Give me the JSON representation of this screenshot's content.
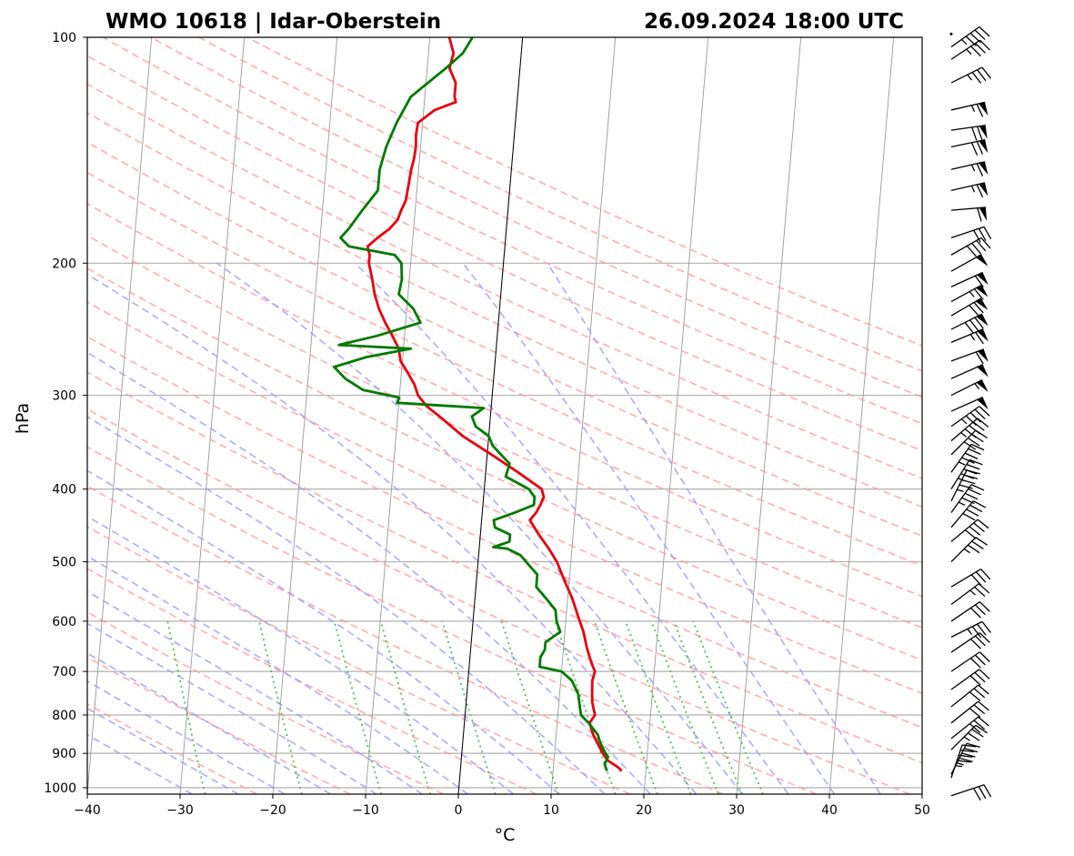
{
  "chart_data": {
    "type": "line",
    "subtype": "skew-T log-p sounding",
    "title_left": "WMO 10618 | Idar-Oberstein",
    "title_right": "26.09.2024 18:00 UTC",
    "xlabel": "°C",
    "ylabel": "hPa",
    "xlim": [
      -40,
      50
    ],
    "ylim_hpa": [
      1020,
      100
    ],
    "y_scale": "log",
    "x_ticks": [
      -40,
      -30,
      -20,
      -10,
      0,
      10,
      20,
      30,
      40,
      50
    ],
    "y_ticks": [
      100,
      200,
      300,
      400,
      500,
      600,
      700,
      800,
      900,
      1000
    ],
    "grid": "horizontal at pressure ticks, skewed isotherms",
    "background_lines": [
      "dry adiabats (red dashed)",
      "moist adiabats (blue dashed)",
      "mixing ratio lines (green dotted)"
    ],
    "colors": {
      "temperature": "#e8000b",
      "dewpoint": "#007a00",
      "dry_adiabat": "#ff9999",
      "moist_adiabat": "#9999ee",
      "mixing_ratio": "#55bb55",
      "isotherm": "#999999",
      "zero_isotherm": "#000000",
      "barbs": "#000000"
    },
    "series": [
      {
        "name": "Temperature",
        "points": [
          [
            950,
            17.4
          ],
          [
            940,
            17.0
          ],
          [
            920,
            15.8
          ],
          [
            900,
            15.2
          ],
          [
            850,
            14.0
          ],
          [
            820,
            13.5
          ],
          [
            800,
            14.0
          ],
          [
            770,
            13.6
          ],
          [
            750,
            13.5
          ],
          [
            720,
            13.4
          ],
          [
            700,
            13.6
          ],
          [
            680,
            13.1
          ],
          [
            650,
            12.5
          ],
          [
            620,
            12.0
          ],
          [
            600,
            11.5
          ],
          [
            560,
            10.5
          ],
          [
            530,
            9.5
          ],
          [
            500,
            8.5
          ],
          [
            480,
            7.5
          ],
          [
            460,
            6.3
          ],
          [
            440,
            5.2
          ],
          [
            430,
            5.8
          ],
          [
            420,
            6.2
          ],
          [
            410,
            6.5
          ],
          [
            400,
            6.2
          ],
          [
            380,
            3.5
          ],
          [
            360,
            0.5
          ],
          [
            340,
            -2.8
          ],
          [
            320,
            -5.5
          ],
          [
            310,
            -7.0
          ],
          [
            300,
            -8.0
          ],
          [
            290,
            -8.5
          ],
          [
            280,
            -9.3
          ],
          [
            270,
            -10.2
          ],
          [
            260,
            -10.5
          ],
          [
            250,
            -11.3
          ],
          [
            240,
            -12.2
          ],
          [
            230,
            -13.0
          ],
          [
            220,
            -13.6
          ],
          [
            210,
            -14.0
          ],
          [
            200,
            -14.5
          ],
          [
            195,
            -14.5
          ],
          [
            190,
            -14.8
          ],
          [
            185,
            -13.8
          ],
          [
            180,
            -12.6
          ],
          [
            175,
            -11.8
          ],
          [
            170,
            -11.5
          ],
          [
            165,
            -11.1
          ],
          [
            160,
            -11.0
          ],
          [
            150,
            -10.8
          ],
          [
            145,
            -10.6
          ],
          [
            140,
            -10.5
          ],
          [
            135,
            -10.6
          ],
          [
            130,
            -10.5
          ],
          [
            125,
            -8.8
          ],
          [
            122,
            -6.6
          ],
          [
            120,
            -6.8
          ],
          [
            115,
            -6.8
          ],
          [
            110,
            -7.6
          ],
          [
            105,
            -7.3
          ],
          [
            100,
            -7.9
          ]
        ]
      },
      {
        "name": "Dewpoint",
        "points": [
          [
            950,
            15.8
          ],
          [
            930,
            15.5
          ],
          [
            910,
            15.8
          ],
          [
            900,
            15.5
          ],
          [
            870,
            14.8
          ],
          [
            850,
            14.5
          ],
          [
            820,
            13.4
          ],
          [
            800,
            12.5
          ],
          [
            780,
            12.3
          ],
          [
            750,
            12.0
          ],
          [
            720,
            11.2
          ],
          [
            700,
            10.0
          ],
          [
            690,
            7.6
          ],
          [
            670,
            7.6
          ],
          [
            655,
            8.0
          ],
          [
            640,
            8.0
          ],
          [
            620,
            9.5
          ],
          [
            600,
            9.0
          ],
          [
            580,
            8.8
          ],
          [
            560,
            7.7
          ],
          [
            540,
            6.5
          ],
          [
            520,
            6.5
          ],
          [
            505,
            5.5
          ],
          [
            490,
            4.5
          ],
          [
            480,
            3.0
          ],
          [
            478,
            1.5
          ],
          [
            470,
            3.2
          ],
          [
            460,
            3.2
          ],
          [
            450,
            1.5
          ],
          [
            440,
            1.3
          ],
          [
            430,
            3.5
          ],
          [
            420,
            5.5
          ],
          [
            410,
            5.5
          ],
          [
            400,
            4.8
          ],
          [
            385,
            2.2
          ],
          [
            370,
            2.5
          ],
          [
            360,
            1.5
          ],
          [
            350,
            0.5
          ],
          [
            340,
            0.0
          ],
          [
            330,
            -1.5
          ],
          [
            320,
            -2.0
          ],
          [
            312,
            -0.8
          ],
          [
            307,
            -10.2
          ],
          [
            302,
            -10.0
          ],
          [
            295,
            -14.0
          ],
          [
            285,
            -16.0
          ],
          [
            275,
            -17.3
          ],
          [
            267,
            -14.0
          ],
          [
            260,
            -9.2
          ],
          [
            257,
            -17.0
          ],
          [
            250,
            -13.0
          ],
          [
            240,
            -8.4
          ],
          [
            230,
            -9.3
          ],
          [
            220,
            -11.0
          ],
          [
            210,
            -10.8
          ],
          [
            200,
            -11.0
          ],
          [
            195,
            -11.8
          ],
          [
            190,
            -16.8
          ],
          [
            185,
            -17.8
          ],
          [
            180,
            -17.0
          ],
          [
            170,
            -15.7
          ],
          [
            160,
            -14.2
          ],
          [
            150,
            -14.2
          ],
          [
            140,
            -13.7
          ],
          [
            130,
            -12.8
          ],
          [
            120,
            -11.5
          ],
          [
            110,
            -8.0
          ],
          [
            105,
            -6.3
          ],
          [
            100,
            -5.4
          ]
        ]
      }
    ],
    "wind_barbs": [
      {
        "p": 1025,
        "u": 30,
        "v": 10
      },
      {
        "p": 970,
        "u": 15,
        "v": 45
      },
      {
        "p": 960,
        "u": 20,
        "v": 40
      },
      {
        "p": 890,
        "u": 25,
        "v": 25
      },
      {
        "p": 860,
        "u": 25,
        "v": 20
      },
      {
        "p": 820,
        "u": 25,
        "v": 20
      },
      {
        "p": 780,
        "u": 25,
        "v": 20
      },
      {
        "p": 740,
        "u": 25,
        "v": 18
      },
      {
        "p": 700,
        "u": 25,
        "v": 17
      },
      {
        "p": 660,
        "u": 25,
        "v": 17
      },
      {
        "p": 630,
        "u": 30,
        "v": 15
      },
      {
        "p": 600,
        "u": 25,
        "v": 17
      },
      {
        "p": 570,
        "u": 20,
        "v": 15
      },
      {
        "p": 540,
        "u": 25,
        "v": 15
      },
      {
        "p": 500,
        "u": 25,
        "v": 25
      },
      {
        "p": 470,
        "u": 30,
        "v": 25
      },
      {
        "p": 450,
        "u": 25,
        "v": 30
      },
      {
        "p": 430,
        "u": 25,
        "v": 35
      },
      {
        "p": 415,
        "u": 20,
        "v": 40
      },
      {
        "p": 400,
        "u": 25,
        "v": 40
      },
      {
        "p": 380,
        "u": 25,
        "v": 35
      },
      {
        "p": 360,
        "u": 30,
        "v": 30
      },
      {
        "p": 345,
        "u": 35,
        "v": 30
      },
      {
        "p": 330,
        "u": 35,
        "v": 25
      },
      {
        "p": 315,
        "u": 45,
        "v": 20
      },
      {
        "p": 300,
        "u": 50,
        "v": 25
      },
      {
        "p": 285,
        "u": 45,
        "v": 20
      },
      {
        "p": 270,
        "u": 55,
        "v": 20
      },
      {
        "p": 255,
        "u": 60,
        "v": 25
      },
      {
        "p": 245,
        "u": 70,
        "v": 35
      },
      {
        "p": 235,
        "u": 60,
        "v": 35
      },
      {
        "p": 225,
        "u": 55,
        "v": 30
      },
      {
        "p": 215,
        "u": 55,
        "v": 25
      },
      {
        "p": 205,
        "u": 45,
        "v": 25
      },
      {
        "p": 195,
        "u": 35,
        "v": 20
      },
      {
        "p": 185,
        "u": 30,
        "v": 10
      },
      {
        "p": 170,
        "u": 60,
        "v": 5
      },
      {
        "p": 160,
        "u": 65,
        "v": 15
      },
      {
        "p": 150,
        "u": 65,
        "v": 15
      },
      {
        "p": 140,
        "u": 70,
        "v": 15
      },
      {
        "p": 133,
        "u": 70,
        "v": 10
      },
      {
        "p": 125,
        "u": 65,
        "v": 15
      },
      {
        "p": 115,
        "u": 30,
        "v": 15
      },
      {
        "p": 107,
        "u": 30,
        "v": 20
      },
      {
        "p": 103,
        "u": 35,
        "v": 25
      },
      {
        "p": 99,
        "u": 0,
        "v": 0
      }
    ]
  }
}
